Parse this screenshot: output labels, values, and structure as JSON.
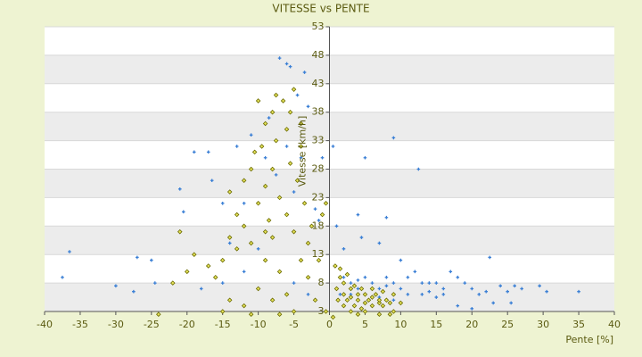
{
  "chart_data": {
    "type": "scatter",
    "title": "VITESSE vs PENTE",
    "xlabel": "Pente [%]",
    "ylabel": "Vitesse [km/h]",
    "xlim": [
      -40,
      40
    ],
    "xticks": [
      -40,
      -35,
      -30,
      -25,
      -20,
      -15,
      -10,
      -5,
      0,
      5,
      10,
      15,
      20,
      25,
      30,
      35,
      40
    ],
    "ylim": [
      3,
      53
    ],
    "yticks": [
      3,
      8,
      13,
      18,
      23,
      28,
      33,
      38,
      43,
      48,
      53
    ],
    "grid": true,
    "series": [
      {
        "color": "#3a7fd5",
        "marker": "plus",
        "x": [
          -36.5,
          -37.5,
          -30,
          -27,
          -25,
          -27.5,
          -24.5,
          -21,
          -20.5,
          -19,
          -17,
          -16.5,
          -15,
          -14,
          -13,
          -12,
          -11,
          -9,
          -8.5,
          -7,
          -6,
          -5.5,
          -4.5,
          -3.5,
          -3,
          -7.5,
          -6,
          -5,
          -4,
          -10,
          -12,
          -15,
          -18,
          -5,
          -3,
          -2,
          -1,
          -1.5,
          0.5,
          1,
          5,
          9,
          12.5,
          4,
          8,
          2,
          4.5,
          7,
          10,
          11,
          12,
          13,
          14,
          15,
          16,
          17,
          18,
          19,
          20,
          21,
          22,
          22.5,
          23,
          24,
          25,
          25.5,
          26,
          27,
          29.5,
          30.5,
          35,
          18,
          20,
          2,
          3,
          4,
          5,
          6,
          7,
          8,
          9,
          3,
          5,
          7,
          9,
          6,
          4,
          8,
          1.5,
          10,
          11,
          13,
          14,
          16,
          15
        ],
        "values": [
          13.5,
          9,
          7.5,
          12.5,
          12,
          6.5,
          8,
          24.5,
          20.5,
          31,
          31,
          26,
          22,
          15,
          32,
          22,
          34,
          30,
          37,
          47.5,
          46.5,
          46,
          41,
          45,
          39,
          27,
          32,
          24,
          30,
          14,
          10,
          8,
          7,
          8,
          6,
          21,
          30,
          19,
          32,
          18,
          30,
          33.5,
          28,
          20,
          19.5,
          14,
          16,
          15,
          12,
          9,
          10,
          8,
          8,
          8,
          7,
          10,
          9,
          8,
          7,
          6,
          6.5,
          12.5,
          4.5,
          7.5,
          6.5,
          4.5,
          7.5,
          7,
          7.5,
          6.5,
          6.5,
          4,
          3.5,
          9,
          8,
          8.5,
          9,
          8,
          7,
          7.5,
          8,
          6,
          6,
          5.5,
          5,
          7,
          7,
          9,
          6,
          7,
          6,
          6,
          6.5,
          6,
          5.5
        ]
      },
      {
        "color": "#e6e35a",
        "marker": "diamond",
        "x": [
          -24,
          -22,
          -21,
          -20,
          -19,
          -17,
          -16,
          -15,
          -14,
          -14,
          -13,
          -12,
          -12,
          -11,
          -11,
          -10,
          -10,
          -9.5,
          -9,
          -9,
          -9,
          -8.5,
          -8,
          -8,
          -8,
          -7.5,
          -7,
          -7,
          -6.5,
          -6,
          -6,
          -6,
          -5.5,
          -5,
          -5,
          -5,
          -4.5,
          -4,
          -4,
          -3.5,
          -3,
          -3,
          -2.5,
          -2,
          -1.5,
          -1,
          -0.5,
          -0.5,
          -8,
          -10,
          -12,
          -14,
          -15,
          -11,
          -7,
          -13,
          -10.5,
          -9,
          -7.5,
          -5.5,
          -4,
          0.5,
          0.8,
          1,
          1.5,
          2,
          2,
          2.5,
          3,
          3,
          3.5,
          4,
          4,
          4.5,
          5,
          5,
          5.5,
          6,
          6,
          6.5,
          7,
          7,
          7.5,
          8,
          8.5,
          8.5,
          9,
          3,
          4,
          2,
          1.2,
          7,
          5,
          3.5,
          6,
          9,
          10,
          2.5,
          1.5,
          4.5,
          7.5
        ],
        "values": [
          2.5,
          8,
          17,
          10,
          13,
          11,
          9,
          12,
          24,
          16,
          20,
          26,
          18,
          28,
          15,
          40,
          22,
          32,
          36,
          25,
          12,
          19,
          38,
          28,
          16,
          33,
          23,
          10,
          40,
          35,
          20,
          6,
          29,
          42,
          17,
          3,
          26,
          36,
          12,
          22,
          15,
          9,
          18,
          5,
          12,
          20,
          22,
          3,
          5,
          7,
          4,
          5,
          3,
          2.5,
          2.5,
          14,
          31,
          17,
          41,
          38,
          32,
          2,
          11,
          7,
          9,
          6,
          8,
          5,
          7,
          5.5,
          4,
          6,
          5,
          7,
          4.5,
          6,
          5,
          4,
          5.5,
          6,
          4.5,
          5,
          4,
          5,
          4.5,
          2.5,
          3,
          3,
          2.5,
          4,
          5,
          2.5,
          3,
          7.5,
          7,
          6,
          4.5,
          9.5,
          10.5,
          3.5,
          6.5
        ]
      }
    ]
  }
}
